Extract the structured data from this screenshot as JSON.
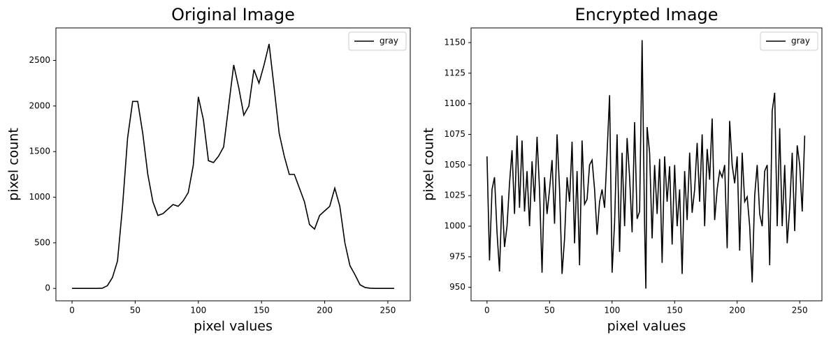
{
  "chart_data": [
    {
      "type": "line",
      "title": "Original Image",
      "x_label": "pixel values",
      "y_label": "pixel count",
      "xlim": [
        -12.75,
        267.75
      ],
      "ylim": [
        -136,
        2856
      ],
      "xticks": [
        0,
        50,
        100,
        150,
        200,
        250
      ],
      "yticks": [
        0,
        500,
        1000,
        1500,
        2000,
        2500
      ],
      "legend": "upper right",
      "x": [
        0,
        4,
        8,
        12,
        16,
        20,
        24,
        28,
        32,
        36,
        40,
        44,
        48,
        52,
        56,
        60,
        64,
        68,
        72,
        76,
        80,
        84,
        88,
        92,
        96,
        100,
        104,
        108,
        112,
        116,
        120,
        124,
        128,
        132,
        136,
        140,
        144,
        148,
        152,
        156,
        160,
        164,
        168,
        172,
        176,
        180,
        184,
        188,
        192,
        196,
        200,
        204,
        208,
        212,
        216,
        220,
        224,
        228,
        232,
        236,
        240,
        244,
        248,
        252,
        255
      ],
      "series": [
        {
          "name": "gray",
          "color": "#000000",
          "values": [
            0,
            0,
            0,
            0,
            0,
            0,
            2,
            30,
            120,
            300,
            900,
            1650,
            2050,
            2050,
            1700,
            1250,
            950,
            800,
            820,
            870,
            920,
            900,
            960,
            1050,
            1350,
            2100,
            1850,
            1400,
            1380,
            1450,
            1550,
            2000,
            2450,
            2200,
            1900,
            2000,
            2400,
            2250,
            2450,
            2680,
            2200,
            1700,
            1450,
            1250,
            1250,
            1100,
            950,
            700,
            650,
            800,
            850,
            900,
            1100,
            900,
            500,
            250,
            150,
            40,
            10,
            2,
            0,
            0,
            0,
            0,
            0
          ]
        }
      ]
    },
    {
      "type": "line",
      "title": "Encrypted Image",
      "x_label": "pixel values",
      "y_label": "pixel count",
      "xlim": [
        -12.75,
        267.75
      ],
      "ylim": [
        939,
        1162
      ],
      "xticks": [
        0,
        50,
        100,
        150,
        200,
        250
      ],
      "yticks": [
        950,
        975,
        1000,
        1025,
        1050,
        1075,
        1100,
        1125,
        1150
      ],
      "legend": "upper right",
      "x": [
        0,
        2,
        4,
        6,
        8,
        10,
        12,
        14,
        16,
        18,
        20,
        22,
        24,
        26,
        28,
        30,
        32,
        34,
        36,
        38,
        40,
        42,
        44,
        46,
        48,
        50,
        52,
        54,
        56,
        58,
        60,
        62,
        64,
        66,
        68,
        70,
        72,
        74,
        76,
        78,
        80,
        82,
        84,
        86,
        88,
        90,
        92,
        94,
        96,
        98,
        100,
        102,
        104,
        106,
        108,
        110,
        112,
        114,
        116,
        118,
        120,
        122,
        124,
        126,
        127,
        128,
        130,
        132,
        134,
        136,
        138,
        140,
        142,
        144,
        146,
        148,
        150,
        152,
        154,
        156,
        158,
        160,
        162,
        164,
        166,
        168,
        170,
        172,
        174,
        176,
        178,
        180,
        182,
        184,
        186,
        188,
        190,
        192,
        194,
        196,
        198,
        200,
        202,
        204,
        206,
        208,
        210,
        212,
        214,
        216,
        218,
        220,
        222,
        224,
        226,
        228,
        230,
        232,
        234,
        236,
        238,
        240,
        242,
        244,
        246,
        248,
        250,
        252,
        254
      ],
      "series": [
        {
          "name": "gray",
          "color": "#000000",
          "values": [
            1057,
            972,
            1030,
            1040,
            995,
            963,
            1025,
            983,
            1000,
            1035,
            1062,
            1010,
            1074,
            1015,
            1070,
            1012,
            1045,
            1000,
            1053,
            1020,
            1073,
            1030,
            962,
            1040,
            1010,
            1030,
            1054,
            1002,
            1075,
            1030,
            961,
            990,
            1040,
            1020,
            1069,
            986,
            1045,
            968,
            1070,
            1018,
            1022,
            1050,
            1054,
            1030,
            993,
            1020,
            1030,
            1015,
            1060,
            1107,
            962,
            1003,
            1075,
            979,
            1060,
            1000,
            1072,
            1040,
            995,
            1085,
            1006,
            1012,
            1152,
            1000,
            949,
            1081,
            1060,
            990,
            1050,
            1010,
            1055,
            970,
            1057,
            1020,
            1049,
            985,
            1050,
            1000,
            1030,
            961,
            1045,
            1005,
            1060,
            1011,
            1030,
            1068,
            1020,
            1075,
            1000,
            1063,
            1038,
            1088,
            1005,
            1030,
            1045,
            1040,
            1050,
            982,
            1086,
            1050,
            1035,
            1057,
            980,
            1060,
            1020,
            1024,
            1000,
            954,
            1025,
            1050,
            1010,
            1000,
            1045,
            1050,
            968,
            1094,
            1109,
            1000,
            1080,
            1000,
            1050,
            986,
            1015,
            1060,
            996,
            1066,
            1050,
            1012,
            1074
          ]
        }
      ]
    }
  ]
}
